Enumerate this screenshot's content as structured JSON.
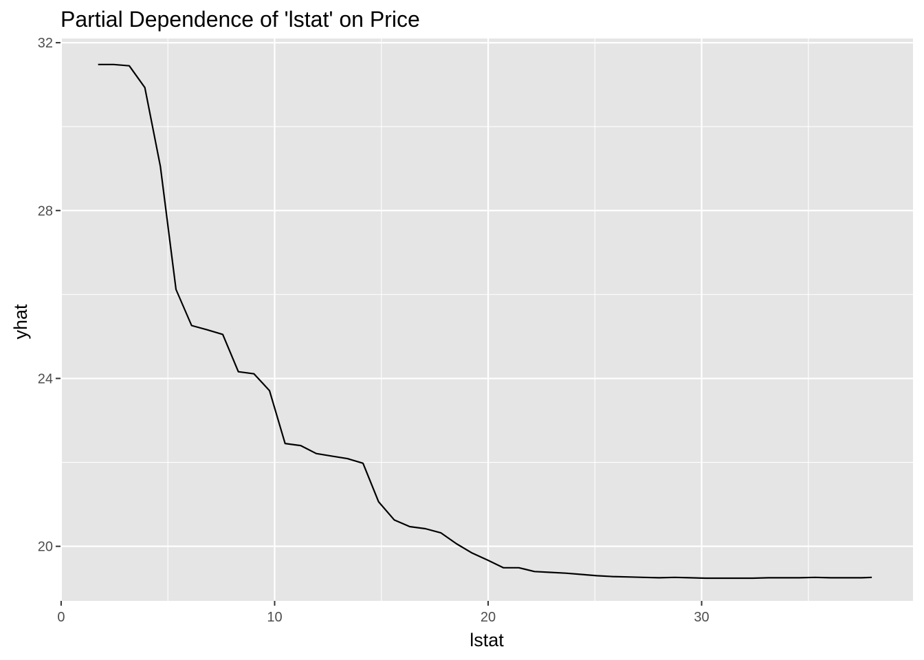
{
  "chart_data": {
    "type": "line",
    "title": "Partial Dependence of 'lstat' on Price",
    "xlabel": "lstat",
    "ylabel": "yhat",
    "xlim": [
      -0.03,
      39.9
    ],
    "ylim": [
      18.7,
      32.1
    ],
    "x_ticks": [
      0,
      10,
      20,
      30
    ],
    "x_tick_labels": [
      "0",
      "10",
      "20",
      "30"
    ],
    "x_minor_ticks": [
      5,
      15,
      25,
      35
    ],
    "y_ticks": [
      20,
      24,
      28,
      32
    ],
    "y_tick_labels": [
      "20",
      "24",
      "28",
      "32"
    ],
    "y_minor_ticks": [
      22,
      26,
      30
    ],
    "grid": true,
    "legend": "none",
    "colors": {
      "panel": "#e5e5e5",
      "grid": "#ffffff",
      "line": "#000000",
      "tick_text": "#4d4d4d"
    },
    "series": [
      {
        "x": [
          1.73,
          2.46,
          3.19,
          3.92,
          4.65,
          5.38,
          6.11,
          6.84,
          7.57,
          8.3,
          9.03,
          9.76,
          10.49,
          11.22,
          11.95,
          12.68,
          13.41,
          14.14,
          14.87,
          15.6,
          16.33,
          17.06,
          17.79,
          18.52,
          19.25,
          19.98,
          20.71,
          21.44,
          22.17,
          22.9,
          23.63,
          24.36,
          25.09,
          25.82,
          26.55,
          27.28,
          28.01,
          28.74,
          29.47,
          30.2,
          30.93,
          31.66,
          32.39,
          33.12,
          33.85,
          34.58,
          35.31,
          36.04,
          36.77,
          37.5,
          37.97
        ],
        "y": [
          31.48,
          31.48,
          31.45,
          30.93,
          29.05,
          26.12,
          25.26,
          25.16,
          25.05,
          24.16,
          24.11,
          23.71,
          22.45,
          22.4,
          22.21,
          22.15,
          22.09,
          21.98,
          21.06,
          20.63,
          20.47,
          20.42,
          20.32,
          20.06,
          19.84,
          19.67,
          19.49,
          19.49,
          19.4,
          19.38,
          19.36,
          19.33,
          19.3,
          19.28,
          19.27,
          19.26,
          19.25,
          19.26,
          19.25,
          19.24,
          19.24,
          19.24,
          19.24,
          19.25,
          19.25,
          19.25,
          19.26,
          19.25,
          19.25,
          19.25,
          19.26
        ]
      }
    ]
  }
}
